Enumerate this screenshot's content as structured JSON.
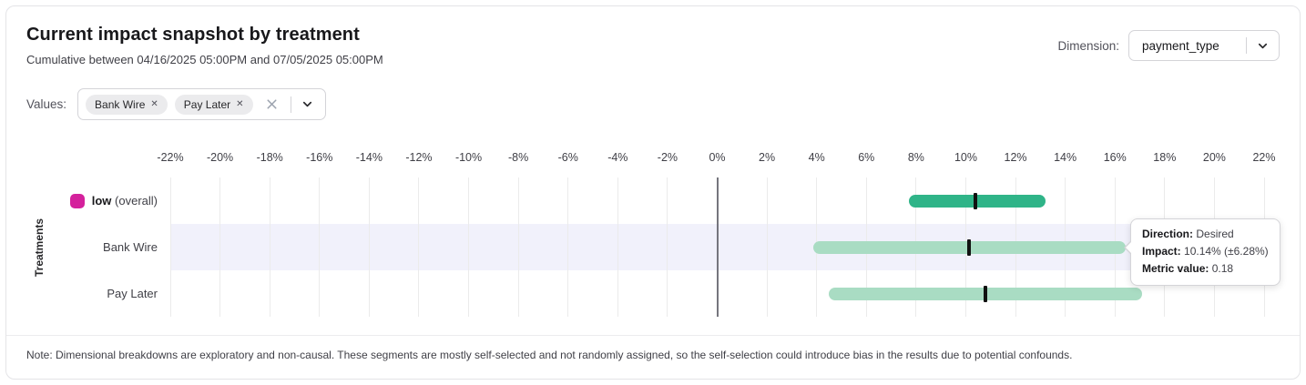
{
  "card": {
    "title": "Current impact snapshot by treatment",
    "subtitle": "Cumulative between 04/16/2025 05:00PM and 07/05/2025 05:00PM",
    "note": "Note: Dimensional breakdowns are exploratory and non-causal. These segments are mostly self-selected and not randomly assigned, so the self-selection could introduce bias in the results due to potential confounds."
  },
  "dimension": {
    "label": "Dimension:",
    "selected": "payment_type"
  },
  "values_filter": {
    "label": "Values:",
    "chips": [
      {
        "text": "Bank Wire"
      },
      {
        "text": "Pay Later"
      }
    ]
  },
  "tooltip": {
    "lines": [
      {
        "label": "Direction:",
        "value": "Desired"
      },
      {
        "label": "Impact:",
        "value": "10.14% (±6.28%)"
      },
      {
        "label": "Metric value:",
        "value": "0.18"
      }
    ]
  },
  "chart_data": {
    "type": "bar",
    "orientation": "horizontal-interval",
    "title": "Current impact snapshot by treatment",
    "xlabel": "",
    "ylabel": "Treatments",
    "xlim": [
      -22,
      22
    ],
    "x_ticks": [
      -22,
      -20,
      -18,
      -16,
      -14,
      -12,
      -10,
      -8,
      -6,
      -4,
      -2,
      0,
      2,
      4,
      6,
      8,
      10,
      12,
      14,
      16,
      18,
      20,
      22
    ],
    "x_tick_suffix": "%",
    "grid": "vertical",
    "zero_line": true,
    "marker_color": "#111111",
    "highlight_band_color": "#f1f1fb",
    "rows": [
      {
        "label": "low (overall)",
        "label_bold": "low",
        "label_suffix": "(overall)",
        "swatch_color": "#d4219c",
        "impact_pct": 10.4,
        "ci_low_pct": 7.7,
        "ci_high_pct": 13.2,
        "bar_color": "#2fb488",
        "highlighted": false
      },
      {
        "label": "Bank Wire",
        "impact_pct": 10.14,
        "ci_low_pct": 3.86,
        "ci_high_pct": 16.42,
        "bar_color": "#a9dcc3",
        "highlighted": true
      },
      {
        "label": "Pay Later",
        "impact_pct": 10.8,
        "ci_low_pct": 4.5,
        "ci_high_pct": 17.1,
        "bar_color": "#a9dcc3",
        "highlighted": false
      }
    ]
  }
}
